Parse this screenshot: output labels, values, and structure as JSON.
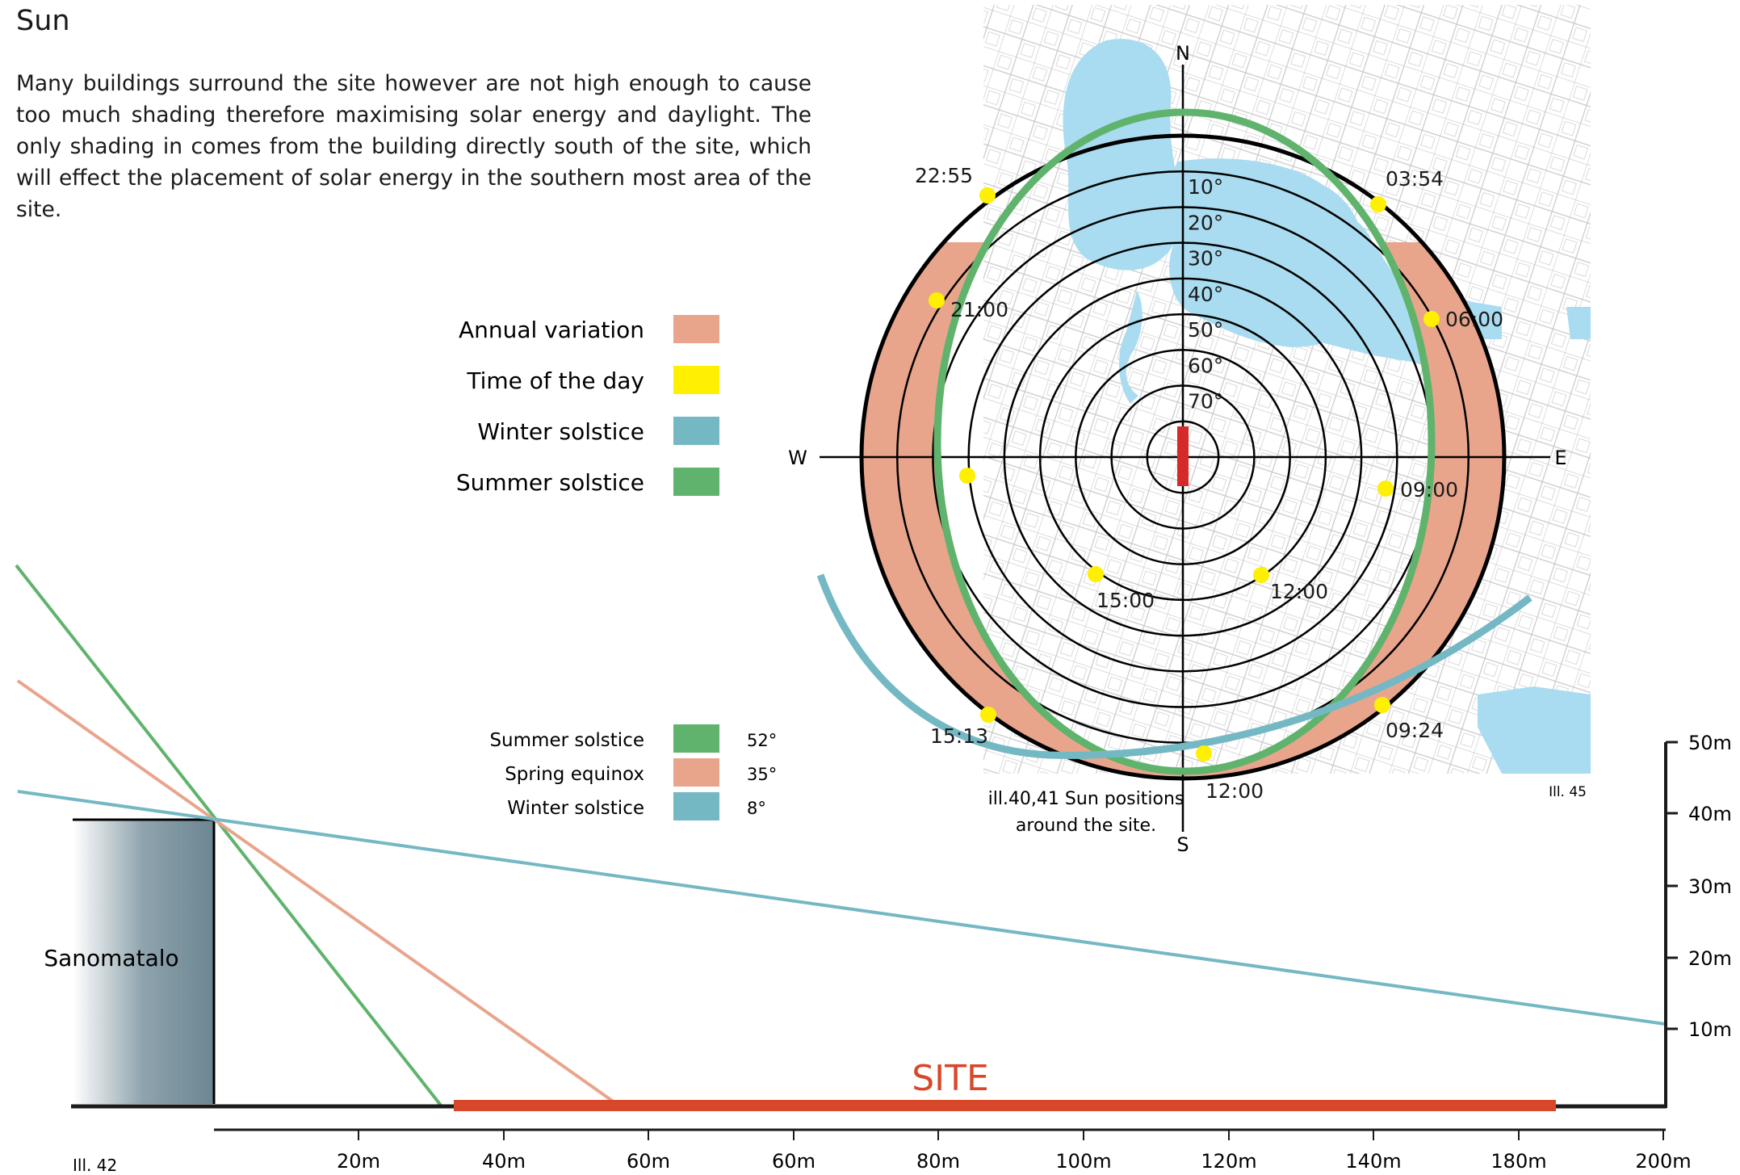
{
  "heading": "Sun",
  "intro": "Many buildings surround the site however are not high enough to cause too much shading therefore maximising solar energy and daylight. The only shading in comes from the building directly south of the site, which will effect the placement of solar energy in the southern most area of the site.",
  "legend": [
    {
      "label": "Annual variation",
      "color": "#e8a58c"
    },
    {
      "label": "Time of the day",
      "color": "#ffef00"
    },
    {
      "label": "Winter solstice",
      "color": "#74b8c4"
    },
    {
      "label": "Summer solstice",
      "color": "#5fb36c"
    }
  ],
  "colors": {
    "map_water": "#a9dcf0",
    "map_lines": "#c8c8c8",
    "site_marker": "#d42a2a",
    "building": "#6b8692",
    "site_bar": "#d9472b",
    "dot": "#ffef00"
  },
  "sun_diagram": {
    "directions": {
      "north": "N",
      "south": "S",
      "west": "W",
      "east": "E"
    },
    "altitude_rings": [
      10,
      20,
      30,
      40,
      50,
      60,
      70
    ],
    "degree_symbol": "°",
    "summer_times": [
      "22:55",
      "21:00",
      "03:54",
      "06:00",
      "09:00",
      "12:00",
      "15:00"
    ],
    "winter_times": [
      "15:13",
      "09:24",
      "12:00"
    ],
    "caption": "ill.40,41 Sun positions around the site.",
    "ref": "Ill. 45"
  },
  "section": {
    "legend": [
      {
        "label": "Summer solstice",
        "angle": "52°",
        "color": "#5fb36c"
      },
      {
        "label": "Spring equinox",
        "angle": "35°",
        "color": "#e8a58c"
      },
      {
        "label": "Winter solstice",
        "angle": "8°",
        "color": "#74b8c4"
      }
    ],
    "building": "Sanomatalo",
    "site_label": "SITE",
    "x_ticks": [
      "20m",
      "40m",
      "60m",
      "60m",
      "80m",
      "100m",
      "120m",
      "140m",
      "180m",
      "200m"
    ],
    "y_ticks": [
      "50m",
      "40m",
      "30m",
      "20m",
      "10m"
    ],
    "ref": "Ill. 42"
  }
}
